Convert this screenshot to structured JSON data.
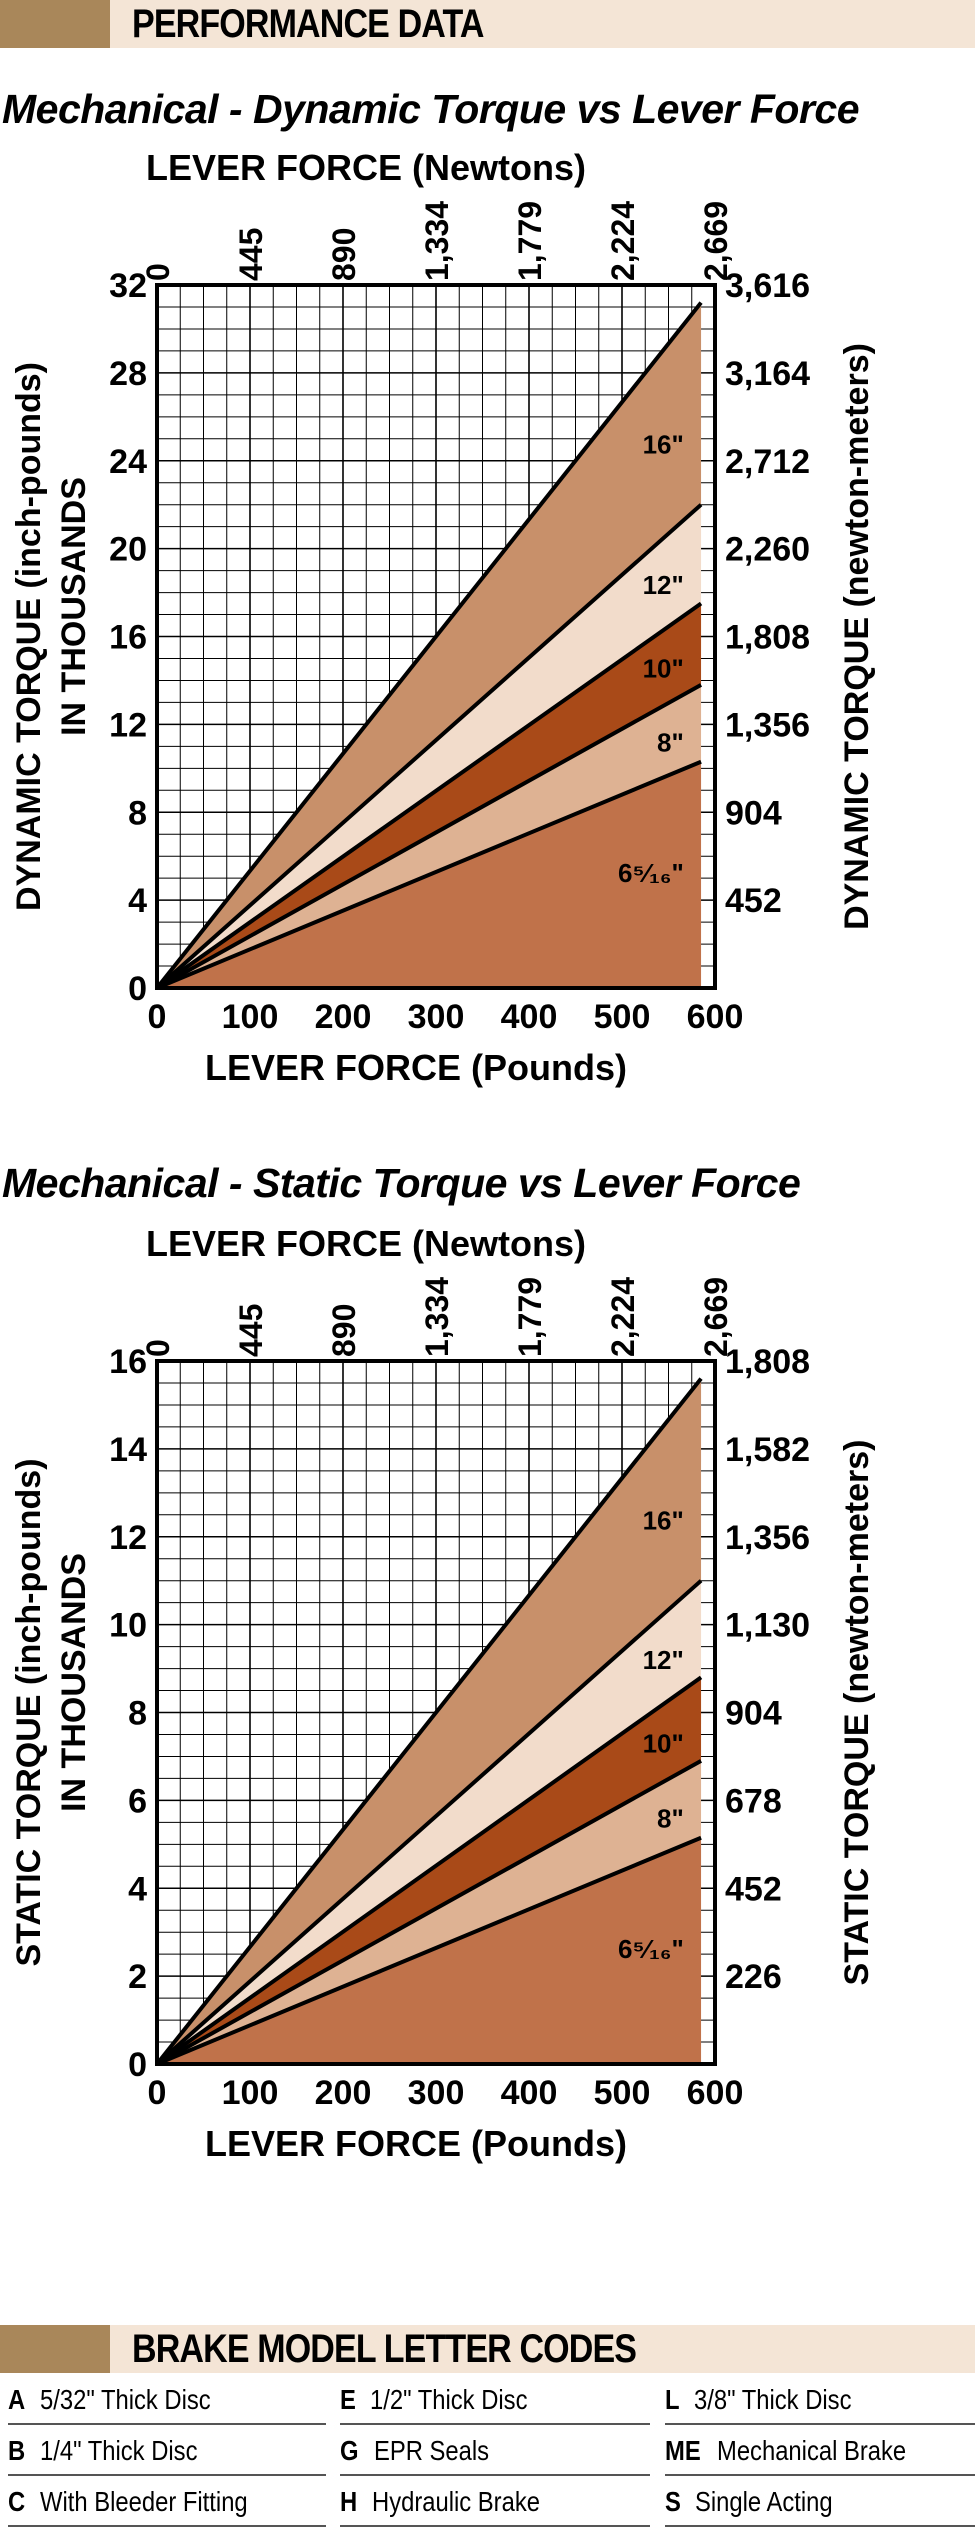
{
  "header": {
    "title": "PERFORMANCE DATA"
  },
  "codes_header": {
    "title": "BRAKE MODEL LETTER CODES"
  },
  "chart_data": [
    {
      "type": "area",
      "title": "Mechanical - Dynamic Torque vs Lever Force",
      "xlabel": "LEVER FORCE (Pounds)",
      "x2label": "LEVER FORCE (Newtons)",
      "ylabel": [
        "DYNAMIC TORQUE (inch-pounds)",
        "IN THOUSANDS"
      ],
      "y2label": "DYNAMIC TORQUE (newton-meters)",
      "xlim": [
        0,
        600
      ],
      "ylim": [
        0,
        32
      ],
      "x_ticks": [
        "0",
        "100",
        "200",
        "300",
        "400",
        "500",
        "600"
      ],
      "x2_ticks": [
        "0",
        "445",
        "890",
        "1,334",
        "1,779",
        "2,224",
        "2,669"
      ],
      "y_ticks": [
        "0",
        "4",
        "8",
        "12",
        "16",
        "20",
        "24",
        "28",
        "32"
      ],
      "y2_ticks": [
        "452",
        "904",
        "1,356",
        "1,808",
        "2,260",
        "2,712",
        "3,164",
        "3,616"
      ],
      "grid": true,
      "series": [
        {
          "name": "16\"",
          "x": [
            0,
            585
          ],
          "y": [
            0,
            31.2
          ],
          "fill": "#c8906a"
        },
        {
          "name": "12\"",
          "x": [
            0,
            585
          ],
          "y": [
            0,
            22.0
          ],
          "fill": "#f2dccb"
        },
        {
          "name": "10\"",
          "x": [
            0,
            585
          ],
          "y": [
            0,
            17.5
          ],
          "fill": "#a94a18"
        },
        {
          "name": "8\"",
          "x": [
            0,
            585
          ],
          "y": [
            0,
            13.8
          ],
          "fill": "#deb293"
        },
        {
          "name": "6⁵⁄₁₆\"",
          "x": [
            0,
            585
          ],
          "y": [
            0,
            10.3
          ],
          "fill": "#c0724a"
        }
      ]
    },
    {
      "type": "area",
      "title": "Mechanical - Static Torque vs Lever Force",
      "xlabel": "LEVER FORCE (Pounds)",
      "x2label": "LEVER FORCE (Newtons)",
      "ylabel": [
        "STATIC TORQUE (inch-pounds)",
        "IN THOUSANDS"
      ],
      "y2label": "STATIC TORQUE (newton-meters)",
      "xlim": [
        0,
        600
      ],
      "ylim": [
        0,
        16
      ],
      "x_ticks": [
        "0",
        "100",
        "200",
        "300",
        "400",
        "500",
        "600"
      ],
      "x2_ticks": [
        "0",
        "445",
        "890",
        "1,334",
        "1,779",
        "2,224",
        "2,669"
      ],
      "y_ticks": [
        "0",
        "2",
        "4",
        "6",
        "8",
        "10",
        "12",
        "14",
        "16"
      ],
      "y2_ticks": [
        "226",
        "452",
        "678",
        "904",
        "1,130",
        "1,356",
        "1,582",
        "1,808"
      ],
      "grid": true,
      "series": [
        {
          "name": "16\"",
          "x": [
            0,
            585
          ],
          "y": [
            0,
            15.6
          ],
          "fill": "#c8906a"
        },
        {
          "name": "12\"",
          "x": [
            0,
            585
          ],
          "y": [
            0,
            11.0
          ],
          "fill": "#f2dccb"
        },
        {
          "name": "10\"",
          "x": [
            0,
            585
          ],
          "y": [
            0,
            8.8
          ],
          "fill": "#a94a18"
        },
        {
          "name": "8\"",
          "x": [
            0,
            585
          ],
          "y": [
            0,
            6.9
          ],
          "fill": "#deb293"
        },
        {
          "name": "6⁵⁄₁₆\"",
          "x": [
            0,
            585
          ],
          "y": [
            0,
            5.15
          ],
          "fill": "#c0724a"
        }
      ]
    }
  ],
  "letter_codes": [
    [
      {
        "letter": "A",
        "desc": "5/32\" Thick Disc"
      },
      {
        "letter": "E",
        "desc": "1/2\" Thick Disc"
      },
      {
        "letter": "L",
        "desc": "3/8\" Thick Disc"
      }
    ],
    [
      {
        "letter": "B",
        "desc": "1/4\" Thick Disc"
      },
      {
        "letter": "G",
        "desc": "EPR Seals"
      },
      {
        "letter": "ME",
        "desc": "Mechanical Brake"
      }
    ],
    [
      {
        "letter": "C",
        "desc": "With Bleeder Fitting"
      },
      {
        "letter": "H",
        "desc": "Hydraulic Brake"
      },
      {
        "letter": "S",
        "desc": "Single Acting"
      }
    ]
  ]
}
